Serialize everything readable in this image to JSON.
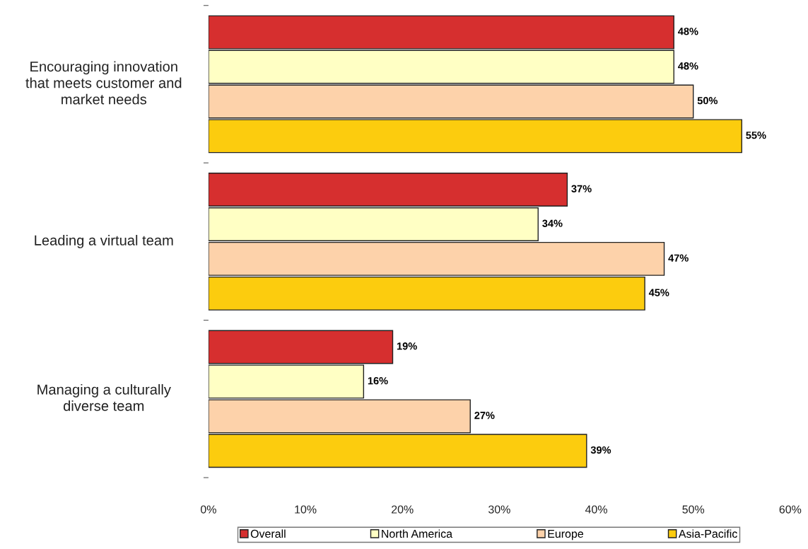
{
  "chart_data": {
    "type": "bar",
    "orientation": "horizontal",
    "categories": [
      "Encouraging innovation\nthat meets customer and\nmarket needs",
      "Leading a virtual team",
      "Managing a culturally\ndiverse team"
    ],
    "series": [
      {
        "name": "Overall",
        "color": "#d62f2f",
        "values": [
          48,
          37,
          19
        ],
        "value_labels": [
          "48%",
          "37%",
          "19%"
        ]
      },
      {
        "name": "North America",
        "color": "#ffffc4",
        "values": [
          48,
          34,
          16
        ],
        "value_labels": [
          "48%",
          "34%",
          "16%"
        ]
      },
      {
        "name": "Europe",
        "color": "#fdd2aa",
        "values": [
          50,
          47,
          27
        ],
        "value_labels": [
          "50%",
          "47%",
          "27%"
        ]
      },
      {
        "name": "Asia-Pacific",
        "color": "#fccc0e",
        "values": [
          55,
          45,
          39
        ],
        "value_labels": [
          "55%",
          "45%",
          "39%"
        ]
      }
    ],
    "xlim": [
      0,
      60
    ],
    "xticks": [
      {
        "value": 0,
        "label": "0%"
      },
      {
        "value": 10,
        "label": "10%"
      },
      {
        "value": 20,
        "label": "20%"
      },
      {
        "value": 30,
        "label": "30%"
      },
      {
        "value": 40,
        "label": "40%"
      },
      {
        "value": 50,
        "label": "50%"
      },
      {
        "value": 60,
        "label": "60%"
      }
    ],
    "grid": false,
    "legend": "bottom"
  }
}
